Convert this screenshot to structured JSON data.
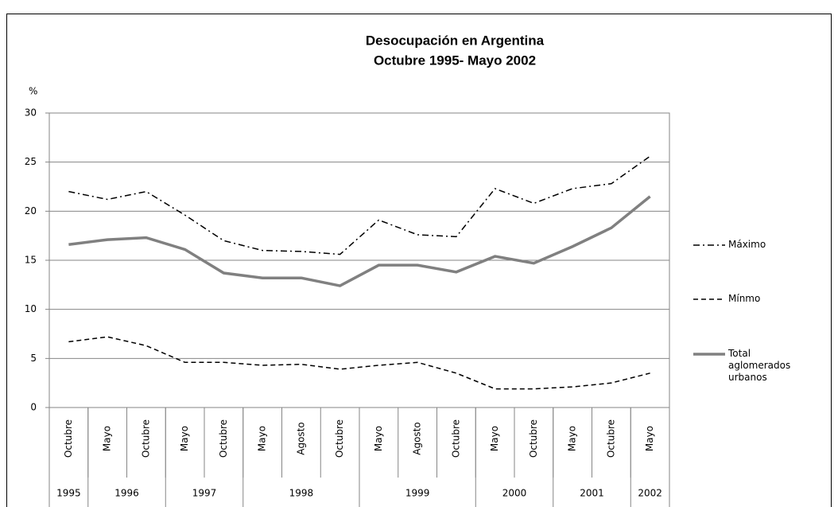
{
  "chart_data": {
    "type": "line",
    "title": [
      "Desocupación en Argentina",
      "Octubre 1995- Mayo 2002"
    ],
    "y_label": "%",
    "categories": [
      "Octubre",
      "Mayo",
      "Octubre",
      "Mayo",
      "Octubre",
      "Mayo",
      "Agosto",
      "Octubre",
      "Mayo",
      "Agosto",
      "Octubre",
      "Mayo",
      "Octubre",
      "Mayo",
      "Octubre",
      "Mayo"
    ],
    "year_groups": [
      {
        "label": "1995",
        "count": 1
      },
      {
        "label": "1996",
        "count": 2
      },
      {
        "label": "1997",
        "count": 2
      },
      {
        "label": "1998",
        "count": 3
      },
      {
        "label": "1999",
        "count": 3
      },
      {
        "label": "2000",
        "count": 2
      },
      {
        "label": "2001",
        "count": 2
      },
      {
        "label": "2002",
        "count": 1
      }
    ],
    "series": [
      {
        "name": "Máximo",
        "color": "#000000",
        "dash": "8,4,2,4",
        "width": 1.5,
        "values": [
          22.0,
          21.2,
          22.0,
          19.6,
          17.0,
          16.0,
          15.9,
          15.6,
          19.1,
          17.6,
          17.4,
          22.3,
          20.8,
          22.3,
          22.8,
          25.6
        ]
      },
      {
        "name": "Mínmo",
        "color": "#000000",
        "dash": "6,4",
        "width": 1.5,
        "values": [
          6.7,
          7.2,
          6.3,
          4.6,
          4.6,
          4.3,
          4.4,
          3.9,
          4.3,
          4.6,
          3.5,
          1.9,
          1.9,
          2.1,
          2.5,
          3.5
        ]
      },
      {
        "name": "Total aglomerados urbanos",
        "color": "#808080",
        "dash": "none",
        "width": 3.5,
        "values": [
          16.6,
          17.1,
          17.3,
          16.1,
          13.7,
          13.2,
          13.2,
          12.4,
          14.5,
          14.5,
          13.8,
          15.4,
          14.7,
          16.4,
          18.3,
          21.5
        ]
      }
    ],
    "ylim": [
      0,
      30
    ],
    "yticks": [
      0,
      5,
      10,
      15,
      20,
      25,
      30
    ],
    "grid": true
  }
}
